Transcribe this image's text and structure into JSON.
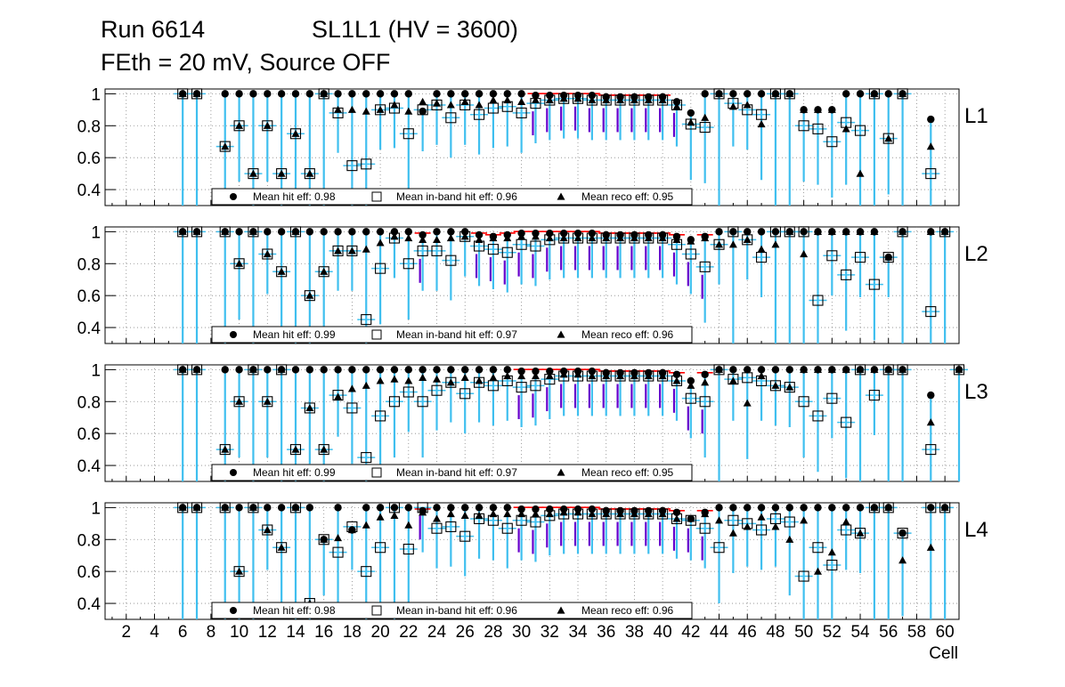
{
  "header": {
    "run": "Run 6614",
    "chamber": "SL1L1 (HV = 3600)",
    "conditions": "FEth = 20 mV, Source OFF"
  },
  "colors": {
    "error_bar": "#3fbfef",
    "low_bar": "#6600cc",
    "red_bar": "#ff0000",
    "open_fill": "#ffffff"
  },
  "chart_data": {
    "type": "scatter",
    "title": "Run 6614   SL1L1 (HV = 3600)   FEth = 20 mV, Source OFF",
    "xlabel": "Cell",
    "ylabel": "",
    "xlim": [
      0.5,
      61
    ],
    "ylim": [
      0.3,
      1.03
    ],
    "x_ticks": [
      2,
      4,
      6,
      8,
      10,
      12,
      14,
      16,
      18,
      20,
      22,
      24,
      26,
      28,
      30,
      32,
      34,
      36,
      38,
      40,
      42,
      44,
      46,
      48,
      50,
      52,
      54,
      56,
      58,
      60
    ],
    "y_ticks": [
      "0.4",
      "0.6",
      "0.8",
      "1"
    ],
    "legend_position": "bottom",
    "panels": [
      {
        "name": "L1",
        "legend": [
          "Mean hit  eff: 0.98",
          "Mean in-band hit eff: 0.96",
          "Mean reco eff: 0.95"
        ],
        "cells": [
          6,
          7,
          9,
          10,
          11,
          12,
          13,
          14,
          15,
          16,
          17,
          18,
          19,
          20,
          21,
          22,
          23,
          24,
          25,
          26,
          27,
          28,
          29,
          30,
          31,
          32,
          33,
          34,
          35,
          36,
          37,
          38,
          39,
          40,
          41,
          42,
          43,
          44,
          45,
          46,
          47,
          48,
          49,
          50,
          51,
          52,
          53,
          54,
          55,
          56,
          57,
          59
        ],
        "hit": [
          1,
          1,
          1,
          1,
          1,
          1,
          1,
          1,
          1,
          1,
          1,
          1,
          1,
          1,
          1,
          1,
          0.89,
          1,
          1,
          1,
          1,
          1,
          1,
          1,
          0.99,
          0.99,
          0.99,
          0.99,
          0.99,
          0.98,
          0.98,
          0.98,
          0.98,
          0.98,
          0.95,
          0.88,
          1,
          1,
          1,
          1,
          1,
          1,
          1,
          0.9,
          0.9,
          0.9,
          1,
          1,
          1,
          1,
          1,
          0.84
        ],
        "inband": [
          1,
          1,
          0.67,
          0.8,
          0.5,
          0.8,
          0.5,
          0.75,
          0.5,
          1,
          0.88,
          0.55,
          0.56,
          0.9,
          0.91,
          0.75,
          0.9,
          0.93,
          0.85,
          0.93,
          0.87,
          0.91,
          0.92,
          0.88,
          0.94,
          0.96,
          0.97,
          0.97,
          0.96,
          0.96,
          0.96,
          0.96,
          0.96,
          0.96,
          0.93,
          0.81,
          0.79,
          1,
          0.94,
          0.9,
          0.87,
          1,
          1,
          0.8,
          0.78,
          0.7,
          0.82,
          0.77,
          1,
          0.72,
          1,
          0.5
        ],
        "reco": [
          1,
          1,
          0.67,
          0.8,
          0.5,
          0.8,
          0.5,
          0.75,
          0.5,
          1,
          0.9,
          0.9,
          0.89,
          0.9,
          0.93,
          0.89,
          0.95,
          0.94,
          0.93,
          0.95,
          0.93,
          0.96,
          0.96,
          0.95,
          0.96,
          0.96,
          0.97,
          0.97,
          0.96,
          0.96,
          0.96,
          0.96,
          0.96,
          0.96,
          0.92,
          0.82,
          0.85,
          1,
          0.92,
          0.93,
          0.81,
          1,
          1,
          0.9,
          0.9,
          0.9,
          0.78,
          0.5,
          1,
          0.72,
          1,
          0.67
        ]
      },
      {
        "name": "L2",
        "legend": [
          "Mean hit  eff: 0.99",
          "Mean in-band hit eff: 0.97",
          "Mean reco eff: 0.96"
        ],
        "cells": [
          6,
          7,
          9,
          10,
          11,
          12,
          13,
          14,
          15,
          16,
          17,
          18,
          19,
          20,
          21,
          22,
          23,
          24,
          25,
          26,
          27,
          28,
          29,
          30,
          31,
          32,
          33,
          34,
          35,
          36,
          37,
          38,
          39,
          40,
          41,
          42,
          43,
          44,
          45,
          46,
          47,
          48,
          49,
          50,
          51,
          52,
          53,
          54,
          55,
          56,
          57,
          59,
          60
        ],
        "hit": [
          1,
          1,
          1,
          1,
          1,
          1,
          1,
          1,
          1,
          1,
          1,
          1,
          1,
          1,
          1,
          1,
          0.98,
          1,
          1,
          1,
          0.98,
          0.97,
          0.98,
          0.99,
          0.99,
          0.99,
          0.99,
          0.99,
          0.99,
          0.98,
          0.98,
          0.98,
          0.98,
          0.98,
          0.97,
          0.95,
          0.97,
          1,
          1,
          1,
          1,
          1,
          1,
          1,
          1,
          1,
          1,
          1,
          1,
          0.84,
          1,
          1,
          1
        ],
        "inband": [
          1,
          1,
          1,
          0.8,
          1,
          0.86,
          0.75,
          1,
          0.6,
          0.75,
          0.88,
          0.88,
          0.45,
          0.77,
          0.96,
          0.8,
          0.88,
          0.88,
          0.82,
          0.97,
          0.91,
          0.89,
          0.87,
          0.92,
          0.91,
          0.95,
          0.96,
          0.96,
          0.96,
          0.96,
          0.96,
          0.96,
          0.96,
          0.96,
          0.92,
          0.86,
          0.78,
          0.92,
          1,
          0.95,
          0.84,
          1,
          1,
          1,
          0.57,
          0.85,
          0.73,
          0.84,
          0.67,
          0.84,
          1,
          0.5,
          1
        ],
        "reco": [
          1,
          1,
          1,
          0.8,
          1,
          0.86,
          0.75,
          1,
          0.6,
          0.75,
          0.88,
          0.88,
          0.89,
          0.93,
          0.97,
          0.96,
          0.95,
          0.95,
          0.96,
          0.97,
          0.95,
          0.96,
          0.96,
          0.97,
          0.97,
          0.96,
          0.96,
          0.96,
          0.96,
          0.96,
          0.96,
          0.96,
          0.96,
          0.96,
          0.95,
          0.94,
          0.96,
          0.92,
          0.92,
          0.95,
          0.89,
          0.92,
          1,
          0.86,
          1,
          1,
          1,
          1,
          1,
          0.84,
          1,
          1,
          1
        ]
      },
      {
        "name": "L3",
        "legend": [
          "Mean hit  eff: 0.99",
          "Mean in-band hit eff: 0.97",
          "Mean reco eff: 0.95"
        ],
        "cells": [
          6,
          7,
          9,
          10,
          11,
          12,
          13,
          14,
          15,
          16,
          17,
          18,
          19,
          20,
          21,
          22,
          23,
          24,
          25,
          26,
          27,
          28,
          29,
          30,
          31,
          32,
          33,
          34,
          35,
          36,
          37,
          38,
          39,
          40,
          41,
          42,
          43,
          44,
          45,
          46,
          47,
          48,
          49,
          50,
          51,
          52,
          53,
          54,
          55,
          56,
          57,
          59,
          61
        ],
        "hit": [
          1,
          1,
          1,
          1,
          1,
          1,
          1,
          1,
          1,
          1,
          1,
          1,
          1,
          1,
          1,
          1,
          1,
          1,
          1,
          1,
          1,
          1,
          1,
          0.99,
          0.99,
          0.99,
          0.99,
          0.99,
          0.99,
          0.98,
          0.98,
          0.98,
          0.98,
          0.98,
          0.97,
          0.93,
          0.97,
          1,
          1,
          1,
          1,
          1,
          1,
          1,
          1,
          1,
          1,
          1,
          1,
          1,
          1,
          0.84,
          1
        ],
        "inband": [
          1,
          1,
          0.5,
          0.8,
          1,
          0.8,
          1,
          0.5,
          0.76,
          0.5,
          0.84,
          0.76,
          0.45,
          0.71,
          0.8,
          0.86,
          0.8,
          0.87,
          0.92,
          0.85,
          0.92,
          0.9,
          0.93,
          0.89,
          0.9,
          0.94,
          0.96,
          0.96,
          0.96,
          0.96,
          0.96,
          0.96,
          0.96,
          0.96,
          0.93,
          0.82,
          0.8,
          1,
          0.94,
          0.95,
          0.93,
          0.9,
          0.89,
          0.8,
          0.71,
          0.82,
          0.67,
          1,
          0.84,
          1,
          1,
          0.5,
          1
        ],
        "reco": [
          1,
          1,
          0.5,
          0.8,
          1,
          0.8,
          1,
          0.5,
          0.76,
          0.5,
          0.83,
          0.88,
          0.9,
          0.93,
          0.94,
          0.93,
          0.95,
          0.94,
          0.92,
          0.95,
          0.93,
          0.95,
          0.96,
          0.96,
          0.96,
          0.96,
          0.97,
          0.97,
          0.96,
          0.96,
          0.96,
          0.96,
          0.96,
          0.96,
          0.93,
          0.9,
          0.92,
          1,
          0.93,
          0.79,
          0.96,
          0.9,
          0.89,
          1,
          1,
          1,
          1,
          1,
          1,
          1,
          1,
          0.67,
          1
        ]
      },
      {
        "name": "L4",
        "legend": [
          "Mean hit  eff: 0.98",
          "Mean in-band hit eff: 0.96",
          "Mean reco eff: 0.96"
        ],
        "cells": [
          6,
          7,
          9,
          10,
          11,
          12,
          13,
          14,
          15,
          16,
          17,
          18,
          19,
          20,
          21,
          22,
          23,
          24,
          25,
          26,
          27,
          28,
          29,
          30,
          31,
          32,
          33,
          34,
          35,
          36,
          37,
          38,
          39,
          40,
          41,
          42,
          43,
          44,
          45,
          46,
          47,
          48,
          49,
          50,
          51,
          52,
          53,
          54,
          55,
          56,
          57,
          59,
          60
        ],
        "hit": [
          1,
          1,
          1,
          1,
          1,
          1,
          1,
          1,
          1,
          0.8,
          1,
          0.86,
          1,
          1,
          1,
          1,
          0.98,
          1,
          1,
          1,
          1,
          1,
          1,
          0.99,
          0.99,
          0.99,
          0.99,
          0.99,
          0.99,
          0.98,
          0.98,
          0.98,
          0.98,
          0.98,
          0.97,
          0.93,
          0.97,
          1,
          1,
          1,
          1,
          1,
          1,
          1,
          1,
          1,
          1,
          1,
          1,
          1,
          0.84,
          1,
          1
        ],
        "inband": [
          1,
          1,
          1,
          0.6,
          1,
          0.86,
          0.75,
          1,
          0.4,
          0.8,
          0.72,
          0.88,
          0.6,
          0.75,
          1,
          0.74,
          1,
          0.87,
          0.88,
          0.82,
          0.93,
          0.92,
          0.87,
          0.92,
          0.91,
          0.95,
          0.96,
          0.96,
          0.96,
          0.96,
          0.96,
          0.96,
          0.96,
          0.96,
          0.93,
          0.92,
          0.87,
          0.75,
          0.92,
          0.9,
          0.86,
          0.93,
          0.91,
          0.57,
          0.75,
          0.64,
          0.86,
          0.84,
          1,
          1,
          0.84,
          1,
          1
        ],
        "reco": [
          1,
          1,
          1,
          0.6,
          1,
          0.86,
          0.75,
          1,
          0.4,
          0.8,
          0.81,
          0.86,
          0.89,
          0.94,
          0.95,
          0.89,
          0.97,
          0.93,
          0.96,
          0.95,
          0.95,
          0.96,
          0.96,
          0.96,
          0.96,
          0.96,
          0.97,
          0.97,
          0.96,
          0.96,
          0.96,
          0.96,
          0.96,
          0.96,
          0.93,
          0.93,
          0.96,
          0.92,
          0.84,
          0.88,
          0.94,
          0.88,
          0.8,
          0.92,
          0.6,
          0.72,
          0.91,
          0.84,
          1,
          1,
          0.67,
          0.75,
          1
        ]
      }
    ]
  }
}
